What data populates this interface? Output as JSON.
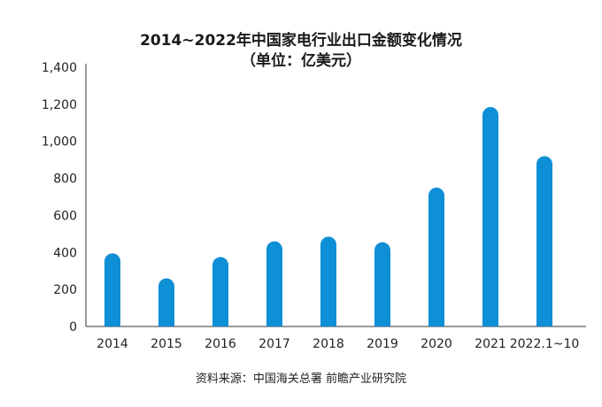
{
  "chart_data": {
    "type": "bar",
    "title": "2014~2022年中国家电行业出口金额变化情况",
    "subtitle": "（单位：亿美元）",
    "categories": [
      "2014",
      "2015",
      "2016",
      "2017",
      "2018",
      "2019",
      "2020",
      "2021",
      "2022.1~10"
    ],
    "values": [
      395,
      260,
      375,
      460,
      485,
      455,
      750,
      1185,
      920
    ],
    "ylim": [
      0,
      1400
    ],
    "yticks": [
      0,
      200,
      400,
      600,
      800,
      "1,000",
      "1,200",
      "1,400"
    ],
    "ytick_values": [
      0,
      200,
      400,
      600,
      800,
      1000,
      1200,
      1400
    ],
    "xlabel": "",
    "ylabel": "",
    "grid": false,
    "legend": "none",
    "bar_color": "#0f8fd6",
    "source": "资料来源：中国海关总署 前瞻产业研究院"
  }
}
